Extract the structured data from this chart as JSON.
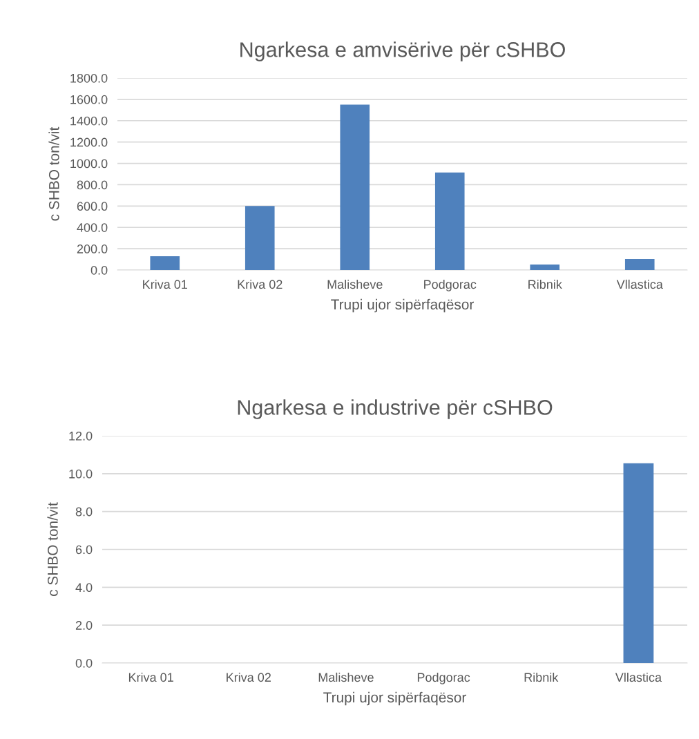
{
  "chart_data": [
    {
      "type": "bar",
      "title": "Ngarkesa e amvisërive për cSHBO",
      "xlabel": "Trupi ujor sipërfaqësor",
      "ylabel": "c SHBO ton/vit",
      "categories": [
        "Kriva 01",
        "Kriva 02",
        "Malisheve",
        "Podgorac",
        "Ribnik",
        "Vllastica"
      ],
      "values": [
        130,
        600,
        1550,
        915,
        51,
        103
      ],
      "color": "#4f81bd",
      "ylim": [
        0,
        1800
      ],
      "yticks": [
        {
          "value": 0,
          "label": "0.0"
        },
        {
          "value": 200,
          "label": "200.0"
        },
        {
          "value": 400,
          "label": "400.0"
        },
        {
          "value": 600,
          "label": "600.0"
        },
        {
          "value": 800,
          "label": "800.0"
        },
        {
          "value": 1000,
          "label": "1000.0"
        },
        {
          "value": 1200,
          "label": "1200.0"
        },
        {
          "value": 1400,
          "label": "1400.0"
        },
        {
          "value": 1600,
          "label": "1600.0"
        },
        {
          "value": 1800,
          "label": "1800.0"
        }
      ],
      "grid": "y"
    },
    {
      "type": "bar",
      "title": "Ngarkesa e industrive për cSHBO",
      "xlabel": "Trupi ujor sipërfaqësor",
      "ylabel": "c SHBO ton/vit",
      "categories": [
        "Kriva 01",
        "Kriva 02",
        "Malisheve",
        "Podgorac",
        "Ribnik",
        "Vllastica"
      ],
      "values": [
        0,
        0,
        0,
        0,
        0,
        10.55
      ],
      "color": "#4f81bd",
      "ylim": [
        0,
        12
      ],
      "yticks": [
        {
          "value": 0,
          "label": "0.0"
        },
        {
          "value": 2,
          "label": "2.0"
        },
        {
          "value": 4,
          "label": "4.0"
        },
        {
          "value": 6,
          "label": "6.0"
        },
        {
          "value": 8,
          "label": "8.0"
        },
        {
          "value": 10,
          "label": "10.0"
        },
        {
          "value": 12,
          "label": "12.0"
        }
      ],
      "grid": "y"
    }
  ]
}
